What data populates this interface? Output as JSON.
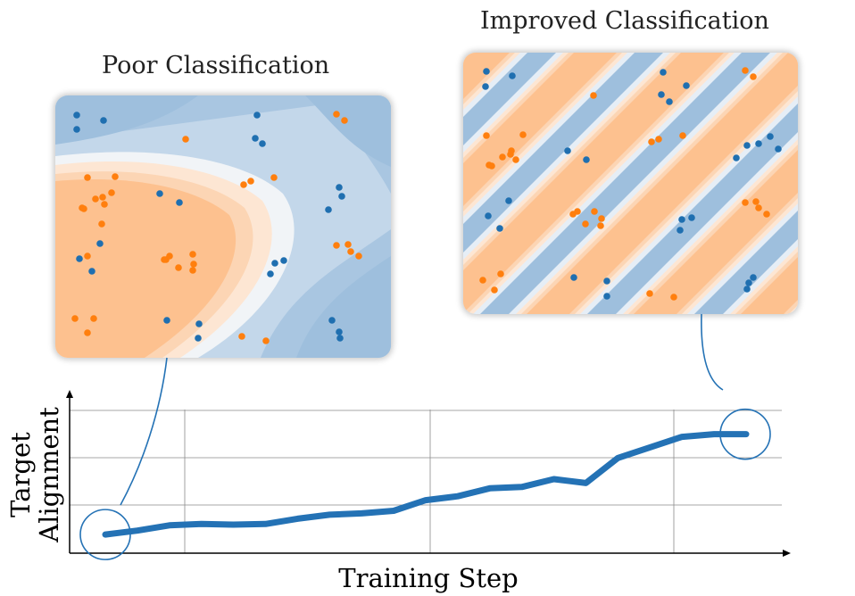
{
  "colors": {
    "blue_point": "#1f6fb0",
    "orange_point": "#ff7f0e",
    "blue_region": "#a6c4e0",
    "orange_region": "#fdc18f",
    "line": "#2472b5"
  },
  "panels": {
    "poor": {
      "title": "Poor Classification"
    },
    "improved": {
      "title": "Improved Classification"
    }
  },
  "chart_data": {
    "type": "line",
    "xlabel": "Training Step",
    "ylabel_lines": [
      "Target",
      "Alignment"
    ],
    "grid": true,
    "x": [
      0,
      1,
      2,
      3,
      4,
      5,
      6,
      7,
      8,
      9,
      10,
      11,
      12,
      13,
      14,
      15,
      16,
      17,
      18,
      19,
      20
    ],
    "series": [
      {
        "values": [
          0.06,
          0.09,
          0.13,
          0.14,
          0.135,
          0.14,
          0.18,
          0.21,
          0.22,
          0.24,
          0.32,
          0.35,
          0.41,
          0.42,
          0.48,
          0.45,
          0.64,
          0.72,
          0.8,
          0.82,
          0.82
        ]
      }
    ]
  }
}
